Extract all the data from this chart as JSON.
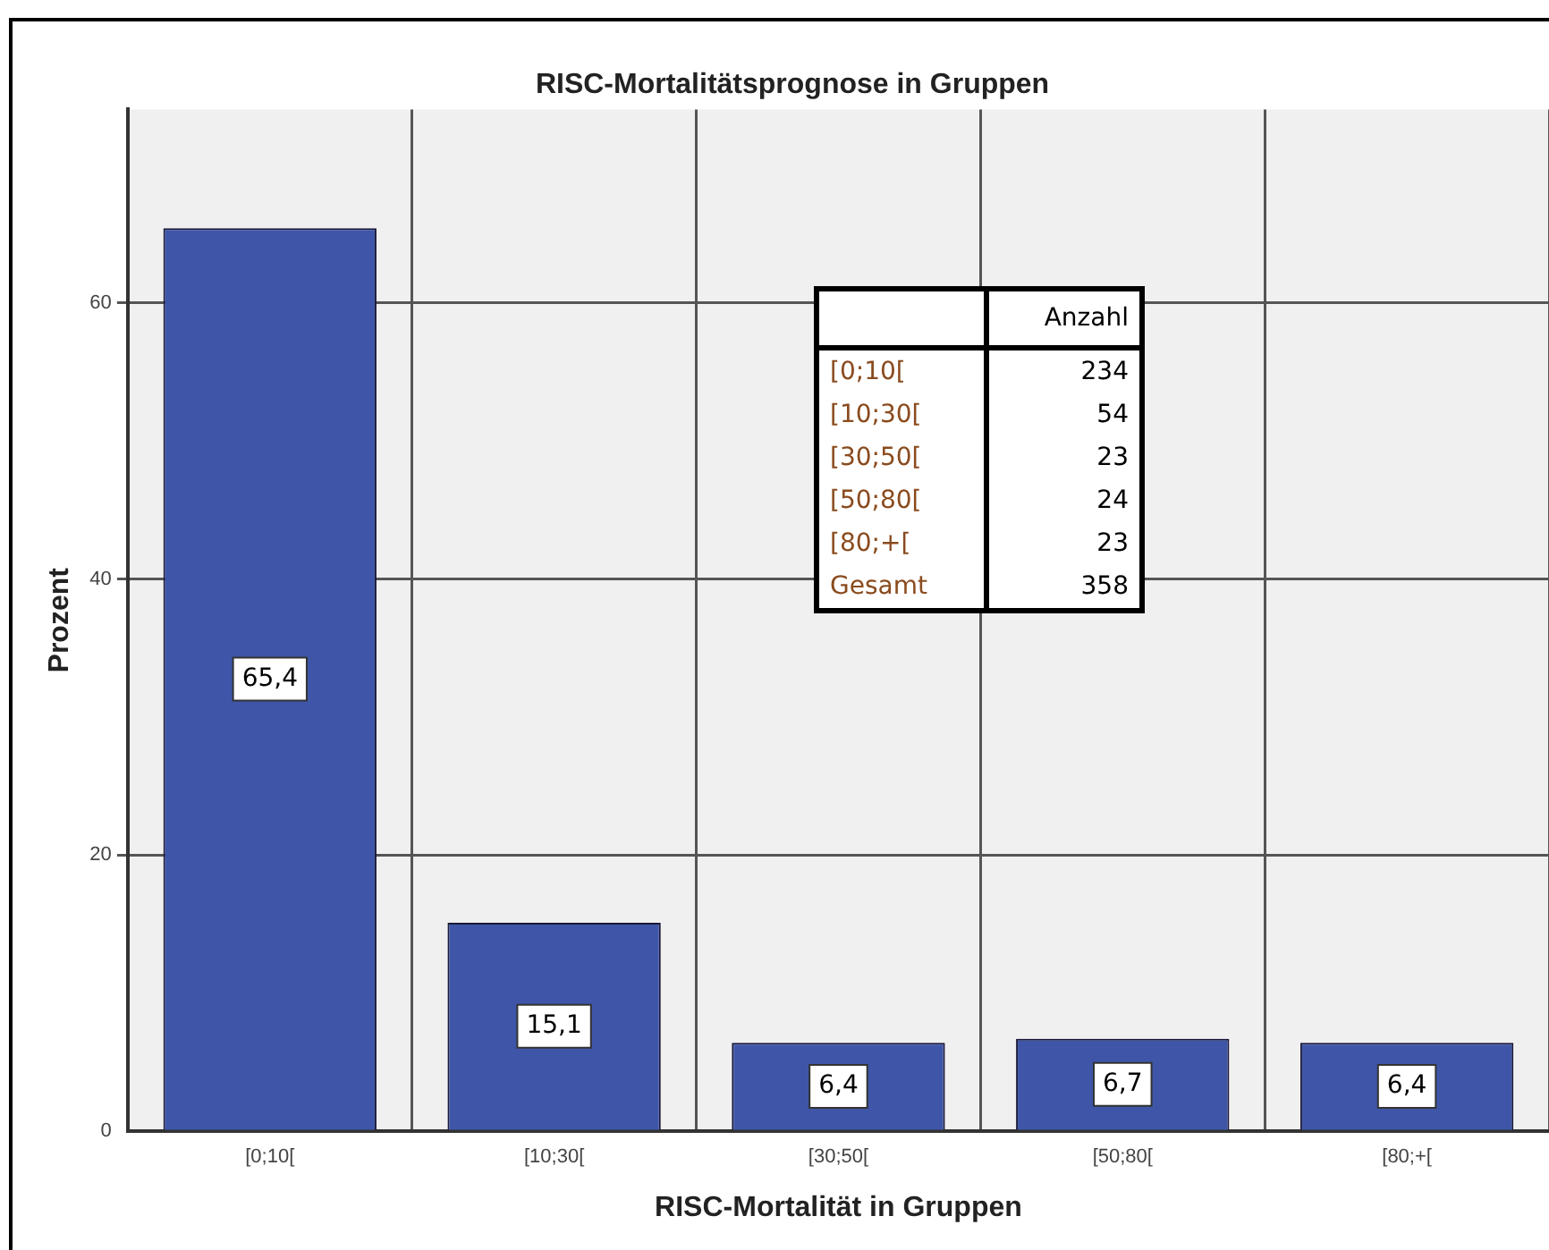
{
  "chart_data": {
    "type": "bar",
    "title": "RISC-Mortalitätsprognose in Gruppen",
    "xlabel": "RISC-Mortalität in Gruppen",
    "ylabel": "Prozent",
    "categories": [
      "[0;10[",
      "[10;30[",
      "[30;50[",
      "[50;80[",
      "[80;+["
    ],
    "values": [
      65.4,
      15.1,
      6.4,
      6.7,
      6.4
    ],
    "value_labels": [
      "65,4",
      "15,1",
      "6,4",
      "6,7",
      "6,4"
    ],
    "color": "#3f56a8",
    "ylim": [
      0,
      74
    ],
    "yticks": [
      0,
      20,
      40,
      60
    ],
    "grid": true,
    "annotations": [
      "Anzahl",
      "234",
      "54",
      "23",
      "24",
      "23",
      "Gesamt",
      "358"
    ]
  }
}
